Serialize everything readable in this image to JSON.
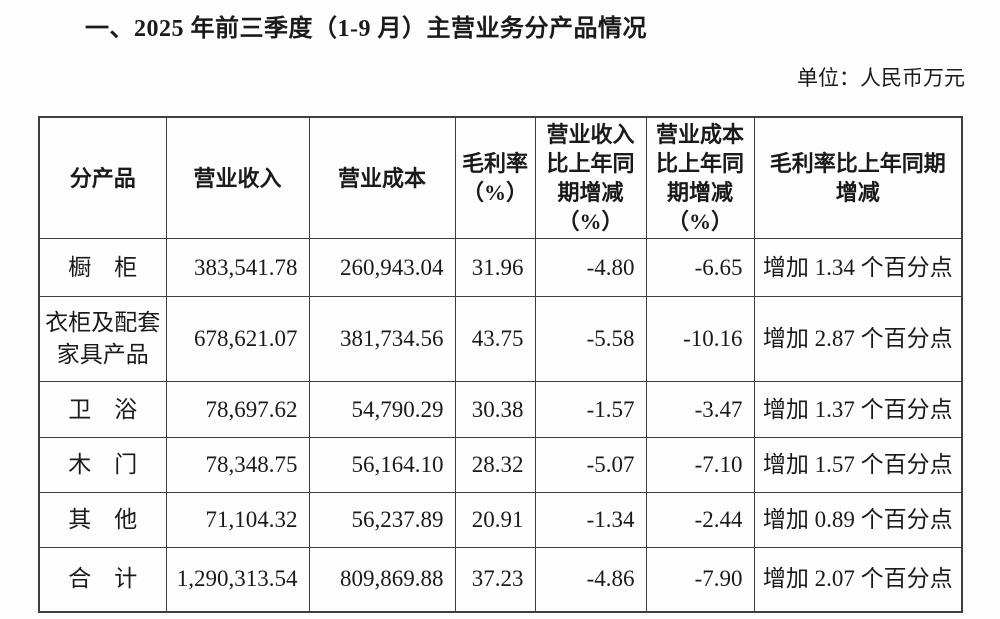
{
  "page": {
    "title": "一、2025 年前三季度（1-9 月）主营业务分产品情况",
    "unit_label": "单位：人民币万元",
    "text_color": "#1a1a1a",
    "border_color": "#3f3f3f",
    "background": "#fdfdfd"
  },
  "table": {
    "columns": [
      {
        "key": "product",
        "label": "分产品"
      },
      {
        "key": "revenue",
        "label": "营业收入"
      },
      {
        "key": "cost",
        "label": "营业成本"
      },
      {
        "key": "gross_margin",
        "label": "毛利率\n（%）"
      },
      {
        "key": "revenue_yoy",
        "label": "营业收入\n比上年同\n期增减\n（%）"
      },
      {
        "key": "cost_yoy",
        "label": "营业成本\n比上年同\n期增减\n（%）"
      },
      {
        "key": "margin_yoy",
        "label": "毛利率比上年同期\n增减"
      }
    ],
    "rows": [
      {
        "product": "橱　柜",
        "revenue": "383,541.78",
        "cost": "260,943.04",
        "gross_margin": "31.96",
        "revenue_yoy": "-4.80",
        "cost_yoy": "-6.65",
        "margin_yoy": "增加 1.34 个百分点"
      },
      {
        "product": "衣柜及配套\n家具产品",
        "revenue": "678,621.07",
        "cost": "381,734.56",
        "gross_margin": "43.75",
        "revenue_yoy": "-5.58",
        "cost_yoy": "-10.16",
        "margin_yoy": "增加 2.87 个百分点"
      },
      {
        "product": "卫　浴",
        "revenue": "78,697.62",
        "cost": "54,790.29",
        "gross_margin": "30.38",
        "revenue_yoy": "-1.57",
        "cost_yoy": "-3.47",
        "margin_yoy": "增加 1.37 个百分点"
      },
      {
        "product": "木　门",
        "revenue": "78,348.75",
        "cost": "56,164.10",
        "gross_margin": "28.32",
        "revenue_yoy": "-5.07",
        "cost_yoy": "-7.10",
        "margin_yoy": "增加 1.57 个百分点"
      },
      {
        "product": "其　他",
        "revenue": "71,104.32",
        "cost": "56,237.89",
        "gross_margin": "20.91",
        "revenue_yoy": "-1.34",
        "cost_yoy": "-2.44",
        "margin_yoy": "增加 0.89 个百分点"
      },
      {
        "product": "合　计",
        "revenue": "1,290,313.54",
        "cost": "809,869.88",
        "gross_margin": "37.23",
        "revenue_yoy": "-4.86",
        "cost_yoy": "-7.90",
        "margin_yoy": "增加 2.07 个百分点"
      }
    ]
  }
}
